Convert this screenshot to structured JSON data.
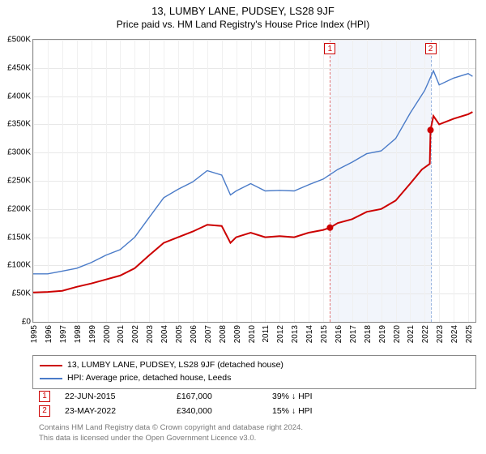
{
  "title": "13, LUMBY LANE, PUDSEY, LS28 9JF",
  "subtitle": "Price paid vs. HM Land Registry's House Price Index (HPI)",
  "chart": {
    "type": "line",
    "ylim": [
      0,
      500000
    ],
    "ytick_step": 50000,
    "y_labels": [
      "£0",
      "£50K",
      "£100K",
      "£150K",
      "£200K",
      "£250K",
      "£300K",
      "£350K",
      "£400K",
      "£450K",
      "£500K"
    ],
    "xlim": [
      1995,
      2025.5
    ],
    "x_labels": [
      "1995",
      "1996",
      "1997",
      "1998",
      "1999",
      "2000",
      "2001",
      "2002",
      "2003",
      "2004",
      "2005",
      "2006",
      "2007",
      "2008",
      "2009",
      "2010",
      "2011",
      "2012",
      "2013",
      "2014",
      "2015",
      "2016",
      "2017",
      "2018",
      "2019",
      "2020",
      "2021",
      "2022",
      "2023",
      "2024",
      "2025"
    ],
    "background_color": "#ffffff",
    "grid_color": "#e8e8e8",
    "border_color": "#888888",
    "band": {
      "start": 2015.47,
      "end": 2022.4,
      "fill": "#e8eef8",
      "left_border": "#cc0000",
      "right_border": "#4a7bc8"
    },
    "series": {
      "property": {
        "color": "#cc0000",
        "width": 2,
        "points": [
          [
            1995,
            52000
          ],
          [
            1996,
            53000
          ],
          [
            1997,
            55000
          ],
          [
            1998,
            62000
          ],
          [
            1999,
            68000
          ],
          [
            2000,
            75000
          ],
          [
            2001,
            82000
          ],
          [
            2002,
            95000
          ],
          [
            2003,
            118000
          ],
          [
            2004,
            140000
          ],
          [
            2005,
            150000
          ],
          [
            2006,
            160000
          ],
          [
            2007,
            172000
          ],
          [
            2008,
            170000
          ],
          [
            2008.6,
            140000
          ],
          [
            2009,
            150000
          ],
          [
            2010,
            158000
          ],
          [
            2011,
            150000
          ],
          [
            2012,
            152000
          ],
          [
            2013,
            150000
          ],
          [
            2014,
            158000
          ],
          [
            2015,
            163000
          ],
          [
            2015.47,
            167000
          ],
          [
            2016,
            175000
          ],
          [
            2017,
            182000
          ],
          [
            2018,
            195000
          ],
          [
            2019,
            200000
          ],
          [
            2020,
            215000
          ],
          [
            2021,
            245000
          ],
          [
            2021.8,
            270000
          ],
          [
            2022.35,
            280000
          ],
          [
            2022.4,
            340000
          ],
          [
            2022.6,
            365000
          ],
          [
            2023,
            350000
          ],
          [
            2024,
            360000
          ],
          [
            2025,
            368000
          ],
          [
            2025.3,
            372000
          ]
        ],
        "markers": [
          {
            "id": "1",
            "x": 2015.47,
            "y": 167000
          },
          {
            "id": "2",
            "x": 2022.4,
            "y": 340000
          }
        ]
      },
      "hpi": {
        "color": "#4a7bc8",
        "width": 1.4,
        "points": [
          [
            1995,
            85000
          ],
          [
            1996,
            85000
          ],
          [
            1997,
            90000
          ],
          [
            1998,
            95000
          ],
          [
            1999,
            105000
          ],
          [
            2000,
            118000
          ],
          [
            2001,
            128000
          ],
          [
            2002,
            150000
          ],
          [
            2003,
            185000
          ],
          [
            2004,
            220000
          ],
          [
            2005,
            235000
          ],
          [
            2006,
            248000
          ],
          [
            2007,
            268000
          ],
          [
            2008,
            260000
          ],
          [
            2008.6,
            225000
          ],
          [
            2009,
            232000
          ],
          [
            2010,
            245000
          ],
          [
            2011,
            232000
          ],
          [
            2012,
            233000
          ],
          [
            2013,
            232000
          ],
          [
            2014,
            243000
          ],
          [
            2015,
            253000
          ],
          [
            2016,
            270000
          ],
          [
            2017,
            283000
          ],
          [
            2018,
            298000
          ],
          [
            2019,
            303000
          ],
          [
            2020,
            325000
          ],
          [
            2021,
            370000
          ],
          [
            2022,
            410000
          ],
          [
            2022.6,
            445000
          ],
          [
            2023,
            420000
          ],
          [
            2024,
            432000
          ],
          [
            2025,
            440000
          ],
          [
            2025.3,
            435000
          ]
        ]
      }
    }
  },
  "legend": {
    "items": [
      {
        "color": "#cc0000",
        "label": "13, LUMBY LANE, PUDSEY, LS28 9JF (detached house)"
      },
      {
        "color": "#4a7bc8",
        "label": "HPI: Average price, detached house, Leeds"
      }
    ]
  },
  "sales": [
    {
      "num": "1",
      "date": "22-JUN-2015",
      "price": "£167,000",
      "delta": "39% ↓ HPI"
    },
    {
      "num": "2",
      "date": "23-MAY-2022",
      "price": "£340,000",
      "delta": "15% ↓ HPI"
    }
  ],
  "footer": {
    "line1": "Contains HM Land Registry data © Crown copyright and database right 2024.",
    "line2": "This data is licensed under the Open Government Licence v3.0."
  },
  "charttop_markers": [
    {
      "id": "1",
      "x": 2015.47
    },
    {
      "id": "2",
      "x": 2022.4
    }
  ]
}
